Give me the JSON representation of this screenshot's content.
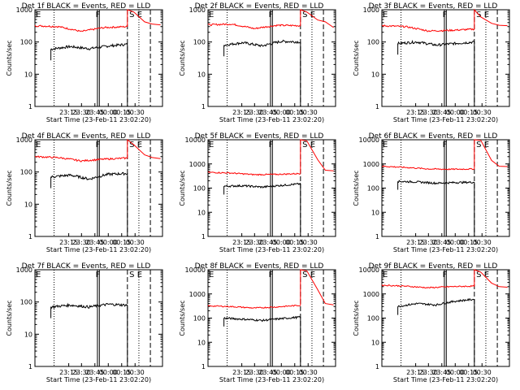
{
  "chart_data": {
    "type": "line",
    "ylabel": "Counts/sec",
    "xlabel": "Start Time (23-Feb-11 23:02:20)",
    "yscale": "log",
    "x_ticks": [
      "23:15",
      "23:30",
      "23:45",
      "00:00",
      "00:15",
      "00:30"
    ],
    "y_ticks_small": [
      "1",
      "10",
      "100",
      "1000"
    ],
    "y_ticks_large": [
      "1",
      "10",
      "100",
      "1000",
      "10000"
    ],
    "colors": {
      "events": "#000000",
      "lld": "#ff0000"
    },
    "markers": {
      "e": "E",
      "f": "F",
      "s": "S",
      "e2": "E"
    },
    "panels": [
      {
        "title": "Det 1f BLACK = Events, RED = LLD",
        "ylim": [
          1,
          1000
        ],
        "xlabels": [
          "23:15",
          "23:30",
          "23:45",
          "00:00",
          "00:15",
          "00:30"
        ],
        "events": [
          60,
          72,
          62,
          75,
          85
        ],
        "lld": [
          320,
          300,
          210,
          280,
          300
        ],
        "tail_lld": [
          1000,
          850,
          420,
          360,
          340
        ],
        "top_label": "S E"
      },
      {
        "title": "Det 2f BLACK = Events, RED = LLD",
        "ylim": [
          1,
          1000
        ],
        "xlabels": [
          "23:15",
          "23:30",
          "23:45",
          "00:00",
          "00:15",
          "00:30"
        ],
        "events": [
          80,
          95,
          75,
          105,
          100
        ],
        "lld": [
          340,
          360,
          260,
          330,
          320
        ],
        "tail_lld": [
          1000,
          850,
          480,
          420,
          280
        ],
        "top_label": "S E"
      },
      {
        "title": "Det 3f BLACK = Events, RED = LLD",
        "ylim": [
          1,
          1000
        ],
        "xlabels": [
          "23:15",
          "23:30",
          "23:45",
          "00:00",
          "00:15",
          "00:30"
        ],
        "events": [
          90,
          100,
          80,
          90,
          100
        ],
        "lld": [
          320,
          300,
          220,
          230,
          250
        ],
        "tail_lld": [
          1000,
          600,
          380,
          330,
          320
        ],
        "top_label": "S E"
      },
      {
        "title": "Det 4f BLACK = Events, RED = LLD",
        "ylim": [
          1,
          1000
        ],
        "xlabels": [
          "23:15",
          "23:30",
          "23:45",
          "00:00",
          "00:15",
          "00:30"
        ],
        "events": [
          70,
          80,
          60,
          85,
          90
        ],
        "lld": [
          300,
          280,
          220,
          250,
          270
        ],
        "tail_lld": [
          1000,
          700,
          340,
          280,
          260
        ],
        "top_label": "S E"
      },
      {
        "title": "Det 5f BLACK = Events, RED = LLD",
        "ylim": [
          1,
          10000
        ],
        "xlabels": [
          "23:15",
          "23:30",
          "23:45",
          "00:00",
          "00:15",
          "00:30"
        ],
        "events": [
          120,
          125,
          110,
          130,
          150
        ],
        "lld": [
          450,
          420,
          360,
          370,
          400
        ],
        "tail_lld": [
          10000,
          9000,
          1500,
          550,
          520
        ],
        "top_label": "S E"
      },
      {
        "title": "Det 6f BLACK = Events, RED = LLD",
        "ylim": [
          1,
          10000
        ],
        "xlabels": [
          "23:15",
          "23:30",
          "23:45",
          "00:00",
          "00:15",
          "00:30"
        ],
        "events": [
          190,
          180,
          160,
          170,
          175
        ],
        "lld": [
          800,
          720,
          620,
          600,
          620
        ],
        "tail_lld": [
          10000,
          9500,
          1400,
          800,
          780
        ],
        "top_label": "S E"
      },
      {
        "title": "Det 7f BLACK = Events, RED = LLD",
        "ylim": [
          1,
          1000
        ],
        "xlabels": [
          "23:15",
          "23:30",
          "23:45",
          "00:00",
          "00:15",
          "00:30"
        ],
        "events": [
          70,
          80,
          70,
          85,
          80
        ],
        "lld": null,
        "tail_lld": null,
        "top_label": "S E"
      },
      {
        "title": "Det 8f BLACK = Events, RED = LLD",
        "ylim": [
          1,
          10000
        ],
        "xlabels": [
          "23:15",
          "23:30",
          "23:45",
          "00:00",
          "00:15",
          "00:30"
        ],
        "events": [
          100,
          90,
          80,
          95,
          110
        ],
        "lld": [
          320,
          300,
          260,
          290,
          340
        ],
        "tail_lld": [
          10000,
          9000,
          1500,
          400,
          350
        ],
        "top_label": "S E"
      },
      {
        "title": "Det 9f BLACK = Events, RED = LLD",
        "ylim": [
          1,
          10000
        ],
        "xlabels": [
          "23:15",
          "23:30",
          "23:45",
          "00:00",
          "00:15",
          "00:30"
        ],
        "events": [
          300,
          400,
          350,
          500,
          600
        ],
        "lld": [
          2300,
          2100,
          1800,
          2000,
          2100
        ],
        "tail_lld": [
          10000,
          8000,
          2800,
          2000,
          1900
        ],
        "top_label": "S E"
      }
    ]
  }
}
